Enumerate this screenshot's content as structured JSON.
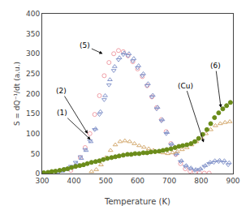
{
  "chart_data": {
    "type": "scatter",
    "xlabel": "Temperature (K)",
    "ylabel": "S = dQ⁻¹/dt (a.u.)",
    "xlim": [
      300,
      900
    ],
    "ylim": [
      0,
      400
    ],
    "xticks": [
      300,
      400,
      500,
      600,
      700,
      800,
      900
    ],
    "yticks": [
      0,
      50,
      100,
      150,
      200,
      250,
      300,
      350,
      400
    ],
    "grid": false,
    "annotations": [
      {
        "text": "(5)",
        "xy": [
          490,
          300
        ],
        "xytext": [
          435,
          320
        ]
      },
      {
        "text": "(2)",
        "xy": [
          443,
          100
        ],
        "xytext": [
          360,
          207
        ]
      },
      {
        "text": "(1)",
        "xy": [
          452,
          85
        ],
        "xytext": [
          362,
          152
        ]
      },
      {
        "text": "(Cu)",
        "xy": [
          808,
          78
        ],
        "xytext": [
          750,
          220
        ]
      },
      {
        "text": "(6)",
        "xy": [
          862,
          165
        ],
        "xytext": [
          845,
          270
        ]
      }
    ],
    "series": [
      {
        "color": "#f0a0a8",
        "marker": "circle-open",
        "x": [
          390,
          405,
          420,
          435,
          450,
          465,
          480,
          495,
          510,
          525,
          540,
          555,
          570,
          585,
          600,
          615,
          630,
          645,
          660,
          675,
          690,
          705,
          720,
          735,
          750,
          765,
          780,
          795,
          810,
          825
        ],
        "values": [
          8,
          18,
          40,
          65,
          100,
          148,
          195,
          245,
          278,
          300,
          308,
          305,
          295,
          280,
          262,
          243,
          220,
          192,
          165,
          135,
          105,
          75,
          48,
          25,
          12,
          6,
          3,
          2,
          1,
          1
        ]
      },
      {
        "color": "#8898cc",
        "marker": "triangle-down-open",
        "x": [
          345,
          360,
          375,
          390,
          405,
          420,
          435,
          450,
          465,
          480,
          495,
          510,
          525,
          540,
          555,
          570,
          585,
          600,
          615,
          630,
          645,
          660,
          675,
          690,
          705,
          720,
          735,
          750,
          765,
          780,
          795,
          810,
          825,
          840,
          855,
          870,
          885
        ],
        "values": [
          5,
          8,
          12,
          18,
          28,
          42,
          60,
          82,
          110,
          148,
          185,
          222,
          258,
          285,
          298,
          295,
          282,
          265,
          245,
          220,
          192,
          162,
          132,
          100,
          72,
          48,
          30,
          18,
          12,
          8,
          10,
          18,
          25,
          28,
          30,
          28,
          22
        ]
      },
      {
        "color": "#8898cc",
        "marker": "triangle-up-open",
        "x": [
          348,
          363,
          378,
          393,
          408,
          423,
          438,
          453,
          468,
          483,
          498,
          513,
          528,
          543,
          558,
          573,
          588,
          603,
          618,
          633,
          648,
          663,
          678,
          693,
          708,
          723,
          738,
          753,
          768,
          783,
          798,
          813,
          828,
          843,
          858,
          873,
          888
        ],
        "values": [
          3,
          6,
          10,
          15,
          25,
          38,
          58,
          80,
          112,
          155,
          195,
          235,
          268,
          290,
          302,
          300,
          288,
          270,
          250,
          225,
          196,
          166,
          135,
          103,
          74,
          50,
          32,
          20,
          14,
          10,
          12,
          20,
          28,
          32,
          33,
          32,
          27
        ]
      },
      {
        "color": "#d4aa70",
        "marker": "triangle-up-open",
        "x": [
          455,
          470,
          485,
          500,
          515,
          530,
          545,
          560,
          575,
          590,
          605,
          620,
          635,
          650,
          665,
          680,
          695,
          710,
          725,
          740,
          755,
          770,
          785,
          800,
          815,
          830,
          845,
          860,
          875,
          890
        ],
        "values": [
          5,
          10,
          22,
          40,
          58,
          72,
          80,
          82,
          80,
          75,
          70,
          66,
          62,
          58,
          55,
          52,
          50,
          52,
          55,
          60,
          65,
          72,
          80,
          90,
          100,
          110,
          120,
          125,
          128,
          130
        ]
      },
      {
        "color": "#6b8c1a",
        "marker": "circle",
        "x": [
          305,
          318,
          330,
          342,
          355,
          368,
          380,
          392,
          405,
          418,
          430,
          442,
          455,
          468,
          480,
          492,
          505,
          518,
          530,
          542,
          555,
          568,
          580,
          592,
          605,
          618,
          630,
          642,
          655,
          668,
          680,
          692,
          705,
          718,
          730,
          742,
          755,
          768,
          780,
          792,
          805,
          818,
          830,
          842,
          855,
          868,
          880,
          892
        ],
        "values": [
          2,
          3,
          5,
          6,
          8,
          10,
          12,
          15,
          18,
          20,
          22,
          25,
          28,
          30,
          32,
          35,
          38,
          40,
          42,
          44,
          46,
          48,
          48,
          50,
          50,
          52,
          52,
          54,
          55,
          56,
          58,
          60,
          62,
          65,
          68,
          70,
          72,
          75,
          80,
          88,
          98,
          110,
          125,
          140,
          152,
          162,
          170,
          178
        ]
      }
    ]
  }
}
